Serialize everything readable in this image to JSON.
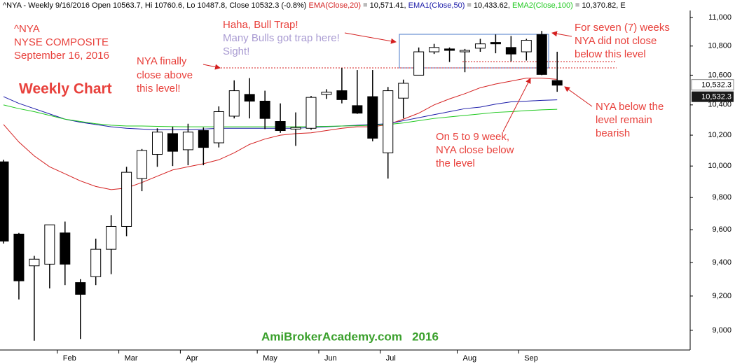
{
  "chart_data": {
    "type": "candlestick",
    "header": [
      {
        "text": "^NYA - Weekly 9/16/2016 Open 10563.7, Hi 10760.6, Lo 10487.8, Close 10532.3 (-0.8%) ",
        "color": "#000000"
      }
    ],
    "categories": [
      null,
      null,
      null,
      null,
      "Feb",
      null,
      null,
      null,
      "Mar",
      null,
      null,
      null,
      "Apr",
      null,
      null,
      null,
      null,
      "May",
      null,
      null,
      null,
      "Jun",
      null,
      null,
      null,
      "Jul",
      null,
      null,
      null,
      null,
      "Aug",
      null,
      null,
      null,
      "Sep",
      null,
      null
    ],
    "open": [
      10027,
      9573,
      9380,
      9390,
      9580,
      9280,
      9315,
      9480,
      9620,
      9920,
      10075,
      10210,
      10105,
      10230,
      10150,
      10325,
      10470,
      10425,
      10290,
      10240,
      10245,
      10470,
      10495,
      10395,
      10455,
      10085,
      10445,
      10600,
      10760,
      10780,
      10760,
      10785,
      10825,
      10790,
      10760,
      10880,
      10563.7
    ],
    "high": [
      10040,
      9580,
      9440,
      9630,
      9650,
      9300,
      9545,
      9690,
      9995,
      10110,
      10245,
      10255,
      10275,
      10250,
      10390,
      10565,
      10580,
      10495,
      10410,
      10350,
      10460,
      10505,
      10650,
      10635,
      10635,
      10520,
      10570,
      10790,
      10815,
      10790,
      10780,
      10850,
      10880,
      10870,
      10850,
      10905,
      10760.6
    ],
    "low": [
      9515,
      9180,
      8940,
      9245,
      9265,
      8950,
      9265,
      9330,
      9560,
      9840,
      9995,
      10000,
      10005,
      10005,
      10120,
      10310,
      10310,
      10240,
      10215,
      10130,
      10235,
      10440,
      10410,
      10340,
      10160,
      9920,
      10310,
      10600,
      10745,
      10690,
      10620,
      10760,
      10750,
      10695,
      10700,
      10600,
      10487.8
    ],
    "close": [
      9530,
      9290,
      9420,
      9630,
      9390,
      9210,
      9480,
      9620,
      9960,
      10100,
      10220,
      10095,
      10220,
      10120,
      10355,
      10495,
      10425,
      10310,
      10230,
      10250,
      10450,
      10485,
      10435,
      10345,
      10180,
      10495,
      10545,
      10760,
      10790,
      10770,
      10770,
      10815,
      10815,
      10745,
      10840,
      10605,
      10532.3
    ],
    "up_color": "#ffffff",
    "down_color": "#000000",
    "series": [
      {
        "name": "EMA(Close,20)",
        "legend_suffix": " = 10,571.41, ",
        "color": "#d42020",
        "values": [
          10270,
          10155,
          10065,
          9995,
          9950,
          9905,
          9870,
          9850,
          9860,
          9895,
          9935,
          9975,
          9995,
          10015,
          10040,
          10085,
          10140,
          10175,
          10200,
          10210,
          10215,
          10230,
          10245,
          10255,
          10255,
          10270,
          10305,
          10345,
          10400,
          10440,
          10475,
          10515,
          10540,
          10560,
          10580,
          10580,
          10571.41
        ]
      },
      {
        "name": "EMA1(Close,50)",
        "legend_suffix": " = 10,433.62, ",
        "color": "#1a1aa8",
        "values": [
          10455,
          10410,
          10375,
          10340,
          10305,
          10285,
          10270,
          10255,
          10245,
          10240,
          10235,
          10235,
          10235,
          10240,
          10245,
          10245,
          10245,
          10245,
          10245,
          10245,
          10250,
          10255,
          10260,
          10265,
          10270,
          10275,
          10295,
          10315,
          10335,
          10355,
          10375,
          10385,
          10405,
          10420,
          10425,
          10430,
          10433.62
        ]
      },
      {
        "name": "EMA2(Close,100)",
        "legend_suffix": " = 10,370.82, E",
        "color": "#1ec81e",
        "values": [
          10400,
          10375,
          10355,
          10330,
          10305,
          10290,
          10275,
          10265,
          10260,
          10260,
          10258,
          10256,
          10255,
          10255,
          10255,
          10255,
          10255,
          10255,
          10255,
          10255,
          10256,
          10258,
          10260,
          10262,
          10265,
          10270,
          10280,
          10295,
          10310,
          10320,
          10330,
          10340,
          10350,
          10355,
          10362,
          10367,
          10370.82
        ]
      }
    ],
    "log_scale": true,
    "ylim": [
      8887,
      11049
    ],
    "yticks": [
      {
        "value": 9000,
        "label": "9,000"
      },
      {
        "value": 9200,
        "label": "9,200"
      },
      {
        "value": 9400,
        "label": "9,400"
      },
      {
        "value": 9600,
        "label": "9,600"
      },
      {
        "value": 9800,
        "label": "9,800"
      },
      {
        "value": 10000,
        "label": "10,000"
      },
      {
        "value": 10200,
        "label": "10,200"
      },
      {
        "value": 10400,
        "label": "10,400"
      },
      {
        "value": 10600,
        "label": "10,600"
      },
      {
        "value": 10800,
        "label": "10,800"
      },
      {
        "value": 11000,
        "label": "11,000"
      }
    ],
    "last_value_label": "10,532.3",
    "annotations": [
      {
        "text": "^NYA",
        "color": "#e8413c"
      },
      {
        "text": "NYSE COMPOSITE",
        "color": "#e8413c"
      },
      {
        "text": "September 16, 2016",
        "color": "#e8413c"
      },
      {
        "text": "Weekly Chart",
        "color": "#e8413c"
      },
      {
        "text": "NYA finally",
        "color": "#e8413c"
      },
      {
        "text": "close above",
        "color": "#e8413c"
      },
      {
        "text": "this level!",
        "color": "#e8413c"
      },
      {
        "text": "Haha, Bull Trap!",
        "color": "#e8413c"
      },
      {
        "text": "Many Bulls got trap here!",
        "color": "#a99bd2"
      },
      {
        "text": "Sight!",
        "color": "#a99bd2"
      },
      {
        "text": "For seven (7) weeks",
        "color": "#e8413c"
      },
      {
        "text": "NYA did not close",
        "color": "#e8413c"
      },
      {
        "text": "below this level",
        "color": "#e8413c"
      },
      {
        "text": "NYA below the",
        "color": "#e8413c"
      },
      {
        "text": "level remain",
        "color": "#e8413c"
      },
      {
        "text": "bearish",
        "color": "#e8413c"
      },
      {
        "text": "On 5 to 9 week,",
        "color": "#e8413c"
      },
      {
        "text": "NYA close below",
        "color": "#e8413c"
      },
      {
        "text": "the level",
        "color": "#e8413c"
      },
      {
        "text": "AmiBrokerAcademy.com   2016",
        "color": "#3aa02c"
      }
    ]
  }
}
